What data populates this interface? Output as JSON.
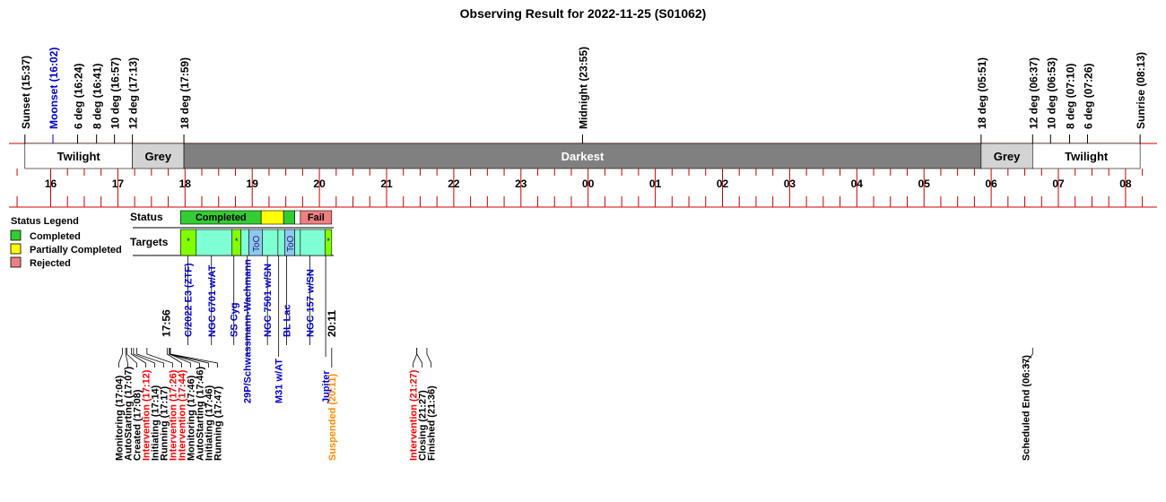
{
  "title": "Observing Result for 2022-11-25 (S01062)",
  "colors": {
    "red_line": "#cc0000",
    "darkest": "#808080",
    "grey": "#d3d3d3",
    "completed": "#33cc33",
    "partial": "#ffff00",
    "rejected": "#f08080",
    "target_bright": "#80ff00",
    "target_aqua": "#80ffd4",
    "target_blue": "#8ec9f0",
    "blue_text": "#0000cc",
    "red_text": "#ff0000",
    "orange_text": "#ff8c00"
  },
  "chart_data": {
    "type": "timeline",
    "time_axis_hours": [
      16,
      17,
      18,
      19,
      20,
      21,
      22,
      23,
      24,
      25,
      26,
      27,
      28,
      29,
      30,
      31,
      32
    ],
    "tick_labels": [
      "16",
      "17",
      "18",
      "19",
      "20",
      "21",
      "22",
      "23",
      "00",
      "01",
      "02",
      "03",
      "04",
      "05",
      "06",
      "07",
      "08"
    ],
    "events": [
      {
        "label": "Sunset (15:37)",
        "time": "15:37",
        "color": "black"
      },
      {
        "label": "Moonset (16:02)",
        "time": "16:02",
        "color": "blue"
      },
      {
        "label": "6 deg (16:24)",
        "time": "16:24",
        "color": "black"
      },
      {
        "label": "8 deg (16:41)",
        "time": "16:41",
        "color": "black"
      },
      {
        "label": "10 deg (16:57)",
        "time": "16:57",
        "color": "black"
      },
      {
        "label": "12 deg (17:13)",
        "time": "17:13",
        "color": "black"
      },
      {
        "label": "18 deg (17:59)",
        "time": "17:59",
        "color": "black"
      },
      {
        "label": "Midnight (23:55)",
        "time": "23:55",
        "color": "black"
      },
      {
        "label": "18 deg (05:51)",
        "time": "29:51",
        "color": "black"
      },
      {
        "label": "12 deg (06:37)",
        "time": "30:37",
        "color": "black"
      },
      {
        "label": "10 deg (06:53)",
        "time": "30:53",
        "color": "black"
      },
      {
        "label": "8 deg (07:10)",
        "time": "31:10",
        "color": "black"
      },
      {
        "label": "6 deg (07:26)",
        "time": "31:26",
        "color": "black"
      },
      {
        "label": "Sunrise (08:13)",
        "time": "32:13",
        "color": "black"
      }
    ],
    "bands": [
      {
        "label": "Twilight",
        "start": "15:37",
        "end": "17:13",
        "kind": "white"
      },
      {
        "label": "Grey",
        "start": "17:13",
        "end": "17:59",
        "kind": "grey"
      },
      {
        "label": "Darkest",
        "start": "17:59",
        "end": "29:51",
        "kind": "darkest"
      },
      {
        "label": "Grey",
        "start": "29:51",
        "end": "30:37",
        "kind": "grey"
      },
      {
        "label": "Twilight",
        "start": "30:37",
        "end": "32:13",
        "kind": "white"
      }
    ],
    "status_row_label": "Status",
    "targets_row_label": "Targets",
    "status_segments": [
      {
        "label": "Completed",
        "start": "17:56",
        "end": "19:08",
        "kind": "completed"
      },
      {
        "label": "",
        "start": "19:08",
        "end": "19:28",
        "kind": "partial"
      },
      {
        "label": "",
        "start": "19:28",
        "end": "19:38",
        "kind": "completed"
      },
      {
        "label": "",
        "start": "19:38",
        "end": "19:43",
        "kind": "white"
      },
      {
        "label": "Fail",
        "start": "19:43",
        "end": "20:11",
        "kind": "rejected"
      }
    ],
    "target_cells": [
      {
        "label": "*",
        "start": "17:56",
        "end": "18:10",
        "kind": "target_bright"
      },
      {
        "label": "",
        "start": "18:10",
        "end": "18:42",
        "kind": "target_aqua"
      },
      {
        "label": "*",
        "start": "18:42",
        "end": "18:50",
        "kind": "target_bright"
      },
      {
        "label": "",
        "start": "18:50",
        "end": "18:57",
        "kind": "target_aqua"
      },
      {
        "label": "ToO",
        "start": "18:57",
        "end": "19:09",
        "kind": "target_blue"
      },
      {
        "label": "",
        "start": "19:09",
        "end": "19:23",
        "kind": "target_aqua"
      },
      {
        "label": "",
        "start": "19:23",
        "end": "19:29",
        "kind": "target_aqua"
      },
      {
        "label": "ToO",
        "start": "19:29",
        "end": "19:38",
        "kind": "target_blue"
      },
      {
        "label": "",
        "start": "19:38",
        "end": "19:43",
        "kind": "target_aqua"
      },
      {
        "label": "",
        "start": "19:43",
        "end": "20:05",
        "kind": "target_aqua"
      },
      {
        "label": "*",
        "start": "20:05",
        "end": "20:11",
        "kind": "target_bright"
      }
    ],
    "target_names": [
      {
        "label": "C/2022 E3 (ZTF)",
        "time": "18:05",
        "tier": "upper"
      },
      {
        "label": "NGC 6701 w/AT",
        "time": "18:26",
        "tier": "upper"
      },
      {
        "label": "SS Cyg",
        "time": "18:46",
        "tier": "upper"
      },
      {
        "label": "29P/Schwassmann-Wachmann",
        "time": "18:58",
        "tier": "lower"
      },
      {
        "label": "NGC 7501 w/SN",
        "time": "19:16",
        "tier": "upper"
      },
      {
        "label": "M31 w/AT",
        "time": "19:26",
        "tier": "lower"
      },
      {
        "label": "BL Lac",
        "time": "19:33",
        "tier": "upper"
      },
      {
        "label": "NGC 157 w/SN",
        "time": "19:54",
        "tier": "upper"
      },
      {
        "label": "Jupiter",
        "time": "20:08",
        "tier": "lower"
      }
    ],
    "window_labels": [
      {
        "label": "17:56",
        "time": "17:56"
      },
      {
        "label": "20:11",
        "time": "20:11"
      }
    ],
    "log_events": [
      {
        "label": "Monitoring (17:04)",
        "time": "17:04",
        "color": "black"
      },
      {
        "label": "AutoStarting (17:07)",
        "time": "17:07",
        "color": "black"
      },
      {
        "label": "Created (17:08)",
        "time": "17:08",
        "color": "black"
      },
      {
        "label": "Intervention (17:12)",
        "time": "17:12",
        "color": "red"
      },
      {
        "label": "Initiating (17:14)",
        "time": "17:14",
        "color": "black"
      },
      {
        "label": "Running (17:17)",
        "time": "17:17",
        "color": "black"
      },
      {
        "label": "Intervention (17:26)",
        "time": "17:26",
        "color": "red"
      },
      {
        "label": "Intervention (17:44)",
        "time": "17:44",
        "color": "red"
      },
      {
        "label": "Monitoring (17:46)",
        "time": "17:46",
        "color": "black"
      },
      {
        "label": "AutoStarting (17:46)",
        "time": "17:46",
        "color": "black"
      },
      {
        "label": "Initiating (17:46)",
        "time": "17:46",
        "color": "black"
      },
      {
        "label": "Running (17:47)",
        "time": "17:47",
        "color": "black"
      },
      {
        "label": "Suspended (20:11)",
        "time": "20:11",
        "color": "orange"
      },
      {
        "label": "Intervention (21:27)",
        "time": "21:27",
        "color": "red"
      },
      {
        "label": "Closing (21:27)",
        "time": "21:27",
        "color": "black"
      },
      {
        "label": "Finished (21:36)",
        "time": "21:36",
        "color": "black"
      },
      {
        "label": "Scheduled End (06:37)",
        "time": "30:37",
        "color": "black"
      }
    ],
    "legend": {
      "title": "Status Legend",
      "placement": "left",
      "items": [
        {
          "label": "Completed",
          "kind": "completed"
        },
        {
          "label": "Partially Completed",
          "kind": "partial"
        },
        {
          "label": "Rejected",
          "kind": "rejected"
        }
      ]
    }
  }
}
